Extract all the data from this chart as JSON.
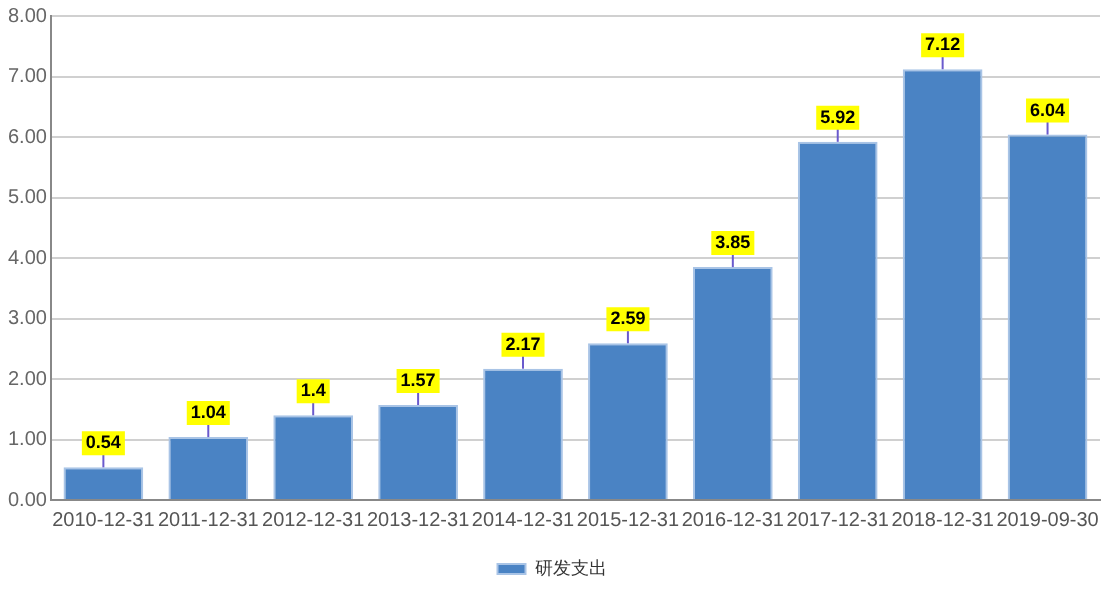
{
  "chart_data": {
    "type": "bar",
    "categories": [
      "2010-12-31",
      "2011-12-31",
      "2012-12-31",
      "2013-12-31",
      "2014-12-31",
      "2015-12-31",
      "2016-12-31",
      "2017-12-31",
      "2018-12-31",
      "2019-09-30"
    ],
    "series": [
      {
        "name": "研发支出",
        "color": "#4a83c4",
        "values": [
          0.54,
          1.04,
          1.4,
          1.57,
          2.17,
          2.59,
          3.85,
          5.92,
          7.12,
          6.04
        ]
      }
    ],
    "ylim": [
      0,
      8
    ],
    "yticks": [
      {
        "value": 0,
        "label": "0.00"
      },
      {
        "value": 1,
        "label": "1.00"
      },
      {
        "value": 2,
        "label": "2.00"
      },
      {
        "value": 3,
        "label": "3.00"
      },
      {
        "value": 4,
        "label": "4.00"
      },
      {
        "value": 5,
        "label": "5.00"
      },
      {
        "value": 6,
        "label": "6.00"
      },
      {
        "value": 7,
        "label": "7.00"
      },
      {
        "value": 8,
        "label": "8.00"
      }
    ],
    "grid": "y",
    "legend": "bottom",
    "data_labels": true
  }
}
